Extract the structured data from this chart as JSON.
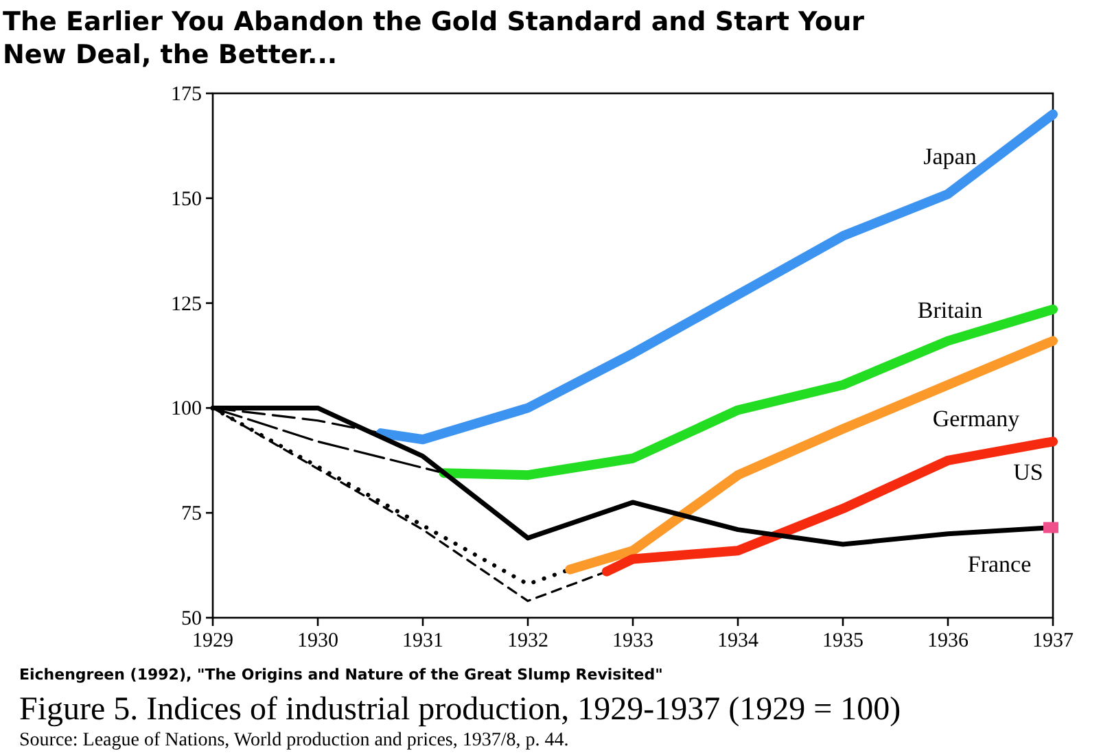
{
  "chart_data": {
    "type": "line",
    "title": "The Earlier You Abandon the Gold Standard and Start Your New Deal, the Better...",
    "annotations": [
      "Eichengreen (1992), \"The Origins and Nature of the Great Slump Revisited\"",
      "Figure 5. Indices of industrial production, 1929-1937 (1929 = 100)",
      "Source: League of Nations, World production and prices, 1937/8, p. 44."
    ],
    "xlim": [
      1929,
      1937
    ],
    "xticks": [
      1929,
      1930,
      1931,
      1932,
      1933,
      1934,
      1935,
      1936,
      1937
    ],
    "ylim": [
      50,
      175
    ],
    "yticks": [
      50,
      75,
      100,
      125,
      150,
      175
    ],
    "grid": false,
    "series": [
      {
        "color": "#000000",
        "line_style": "dashed",
        "x": [
          1929,
          1930,
          1930.6
        ],
        "values": [
          100,
          97,
          94
        ]
      },
      {
        "color": "#000000",
        "line_style": "dashed",
        "x": [
          1929,
          1930,
          1931.2
        ],
        "values": [
          100,
          92,
          84.5
        ]
      },
      {
        "color": "#000000",
        "line_style": "dotted",
        "x": [
          1929,
          1930,
          1931,
          1932,
          1932.4
        ],
        "values": [
          100,
          86,
          72,
          58,
          61.5
        ]
      },
      {
        "color": "#000000",
        "line_style": "dashed",
        "x": [
          1929,
          1930,
          1931,
          1932,
          1932.75
        ],
        "values": [
          100,
          85.5,
          71,
          54,
          61
        ]
      },
      {
        "name": "Japan",
        "color": "#3d94f0",
        "line_style": "solid",
        "x": [
          1930.6,
          1931,
          1932,
          1933,
          1934,
          1935,
          1936,
          1937
        ],
        "values": [
          94,
          92.5,
          100,
          113,
          127,
          141,
          151,
          170
        ]
      },
      {
        "name": "Britain",
        "color": "#22dd22",
        "line_style": "solid",
        "x": [
          1931.2,
          1932,
          1933,
          1934,
          1935,
          1936,
          1937
        ],
        "values": [
          84.5,
          84,
          88,
          99.5,
          105.5,
          116,
          123.5
        ]
      },
      {
        "name": "Germany",
        "color": "#fb9a2a",
        "line_style": "solid",
        "x": [
          1932.4,
          1933,
          1934,
          1935,
          1936,
          1937
        ],
        "values": [
          61.5,
          66,
          84,
          95,
          105.5,
          116
        ]
      },
      {
        "name": "US",
        "color": "#f52a0e",
        "line_style": "solid",
        "x": [
          1932.75,
          1933,
          1934,
          1935,
          1936,
          1937
        ],
        "values": [
          61,
          64,
          66,
          76,
          87.5,
          92
        ]
      },
      {
        "name": "France",
        "color": "#000000",
        "line_style": "solid",
        "x": [
          1929,
          1930,
          1931,
          1932,
          1933,
          1934,
          1935,
          1936,
          1937
        ],
        "values": [
          100,
          100,
          88.5,
          69,
          77.5,
          71,
          67.5,
          70,
          71.5
        ]
      },
      {
        "type": "scatter",
        "color": "#f0508c",
        "marker": "square",
        "x": [
          1937
        ],
        "values": [
          71.5
        ]
      }
    ]
  }
}
